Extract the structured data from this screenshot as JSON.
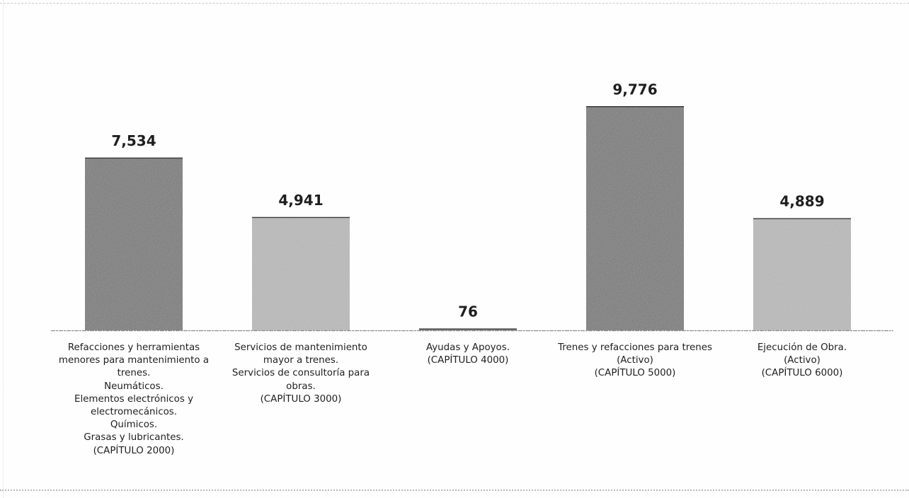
{
  "chart_data": {
    "type": "bar",
    "title": "",
    "xlabel": "",
    "ylabel": "",
    "ylim": [
      0,
      10000
    ],
    "grid": false,
    "legend": "none",
    "categories": [
      [
        "Refacciones y herramientas",
        "menores para mantenimiento a",
        "trenes.",
        "Neumáticos.",
        "Elementos electrónicos y",
        "electromecánicos.",
        "Químicos.",
        "Grasas y lubricantes.",
        "(CAPÍTULO 2000)"
      ],
      [
        "Servicios de mantenimiento",
        "mayor a trenes.",
        "Servicios de consultoría para",
        "obras.",
        "(CAPÍTULO 3000)"
      ],
      [
        "Ayudas y Apoyos.",
        "(CAPÍTULO 4000)"
      ],
      [
        "Trenes y refacciones para trenes",
        "(Activo)",
        "(CAPÍTULO 5000)"
      ],
      [
        "Ejecución de Obra.",
        "(Activo)",
        "(CAPÍTULO 6000)"
      ]
    ],
    "values": [
      7534,
      4941,
      76,
      9776,
      4889
    ],
    "value_labels": [
      "7,534",
      "4,941",
      "76",
      "9,776",
      "4,889"
    ],
    "colors": [
      "#6d6d6d",
      "#b0b0b0",
      "#6d6d6d",
      "#6d6d6d",
      "#b0b0b0"
    ],
    "baseline_color": "#8c8c8c",
    "label_color": "#1e1e1e"
  }
}
